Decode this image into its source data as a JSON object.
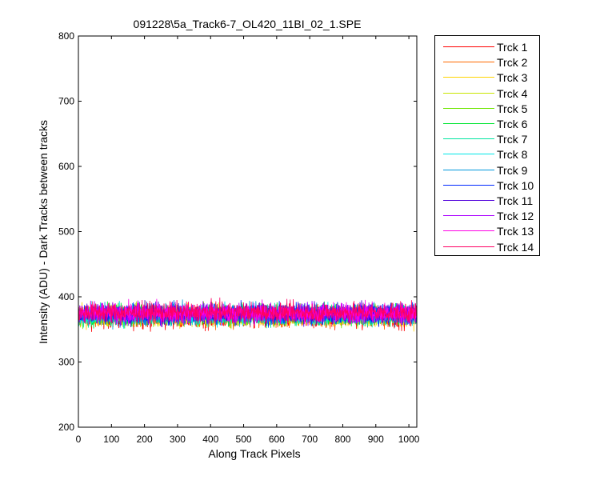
{
  "chart_data": {
    "type": "line",
    "title": "091228\\5a_Track6-7_OL420_11BI_02_1.SPE",
    "xlabel": "Along Track Pixels",
    "ylabel": "Intensity (ADU) - Dark Tracks between tracks",
    "xlim": [
      0,
      1024
    ],
    "ylim": [
      200,
      800
    ],
    "xticks": [
      "0",
      "100",
      "200",
      "300",
      "400",
      "500",
      "600",
      "700",
      "800",
      "900",
      "1000"
    ],
    "yticks": [
      "200",
      "300",
      "400",
      "500",
      "600",
      "700",
      "800"
    ],
    "grid": false,
    "legend_position": "outside-right",
    "noise_note_mean": 372,
    "series": [
      {
        "name": "Trck 1",
        "color": "#ff0000",
        "mean": 368,
        "spread": 14
      },
      {
        "name": "Trck 2",
        "color": "#ff6a00",
        "mean": 369,
        "spread": 13
      },
      {
        "name": "Trck 3",
        "color": "#ffd400",
        "mean": 370,
        "spread": 13
      },
      {
        "name": "Trck 4",
        "color": "#c8e600",
        "mean": 371,
        "spread": 13
      },
      {
        "name": "Trck 5",
        "color": "#6ee600",
        "mean": 372,
        "spread": 13
      },
      {
        "name": "Trck 6",
        "color": "#00e632",
        "mean": 372,
        "spread": 13
      },
      {
        "name": "Trck 7",
        "color": "#00e6a0",
        "mean": 372,
        "spread": 13
      },
      {
        "name": "Trck 8",
        "color": "#00e6e6",
        "mean": 372,
        "spread": 13
      },
      {
        "name": "Trck 9",
        "color": "#0096dc",
        "mean": 373,
        "spread": 13
      },
      {
        "name": "Trck 10",
        "color": "#0028ff",
        "mean": 374,
        "spread": 13
      },
      {
        "name": "Trck 11",
        "color": "#5000dc",
        "mean": 374,
        "spread": 13
      },
      {
        "name": "Trck 12",
        "color": "#aa00ff",
        "mean": 375,
        "spread": 13
      },
      {
        "name": "Trck 13",
        "color": "#ff00e6",
        "mean": 375,
        "spread": 13
      },
      {
        "name": "Trck 14",
        "color": "#ff0064",
        "mean": 376,
        "spread": 13
      }
    ]
  }
}
